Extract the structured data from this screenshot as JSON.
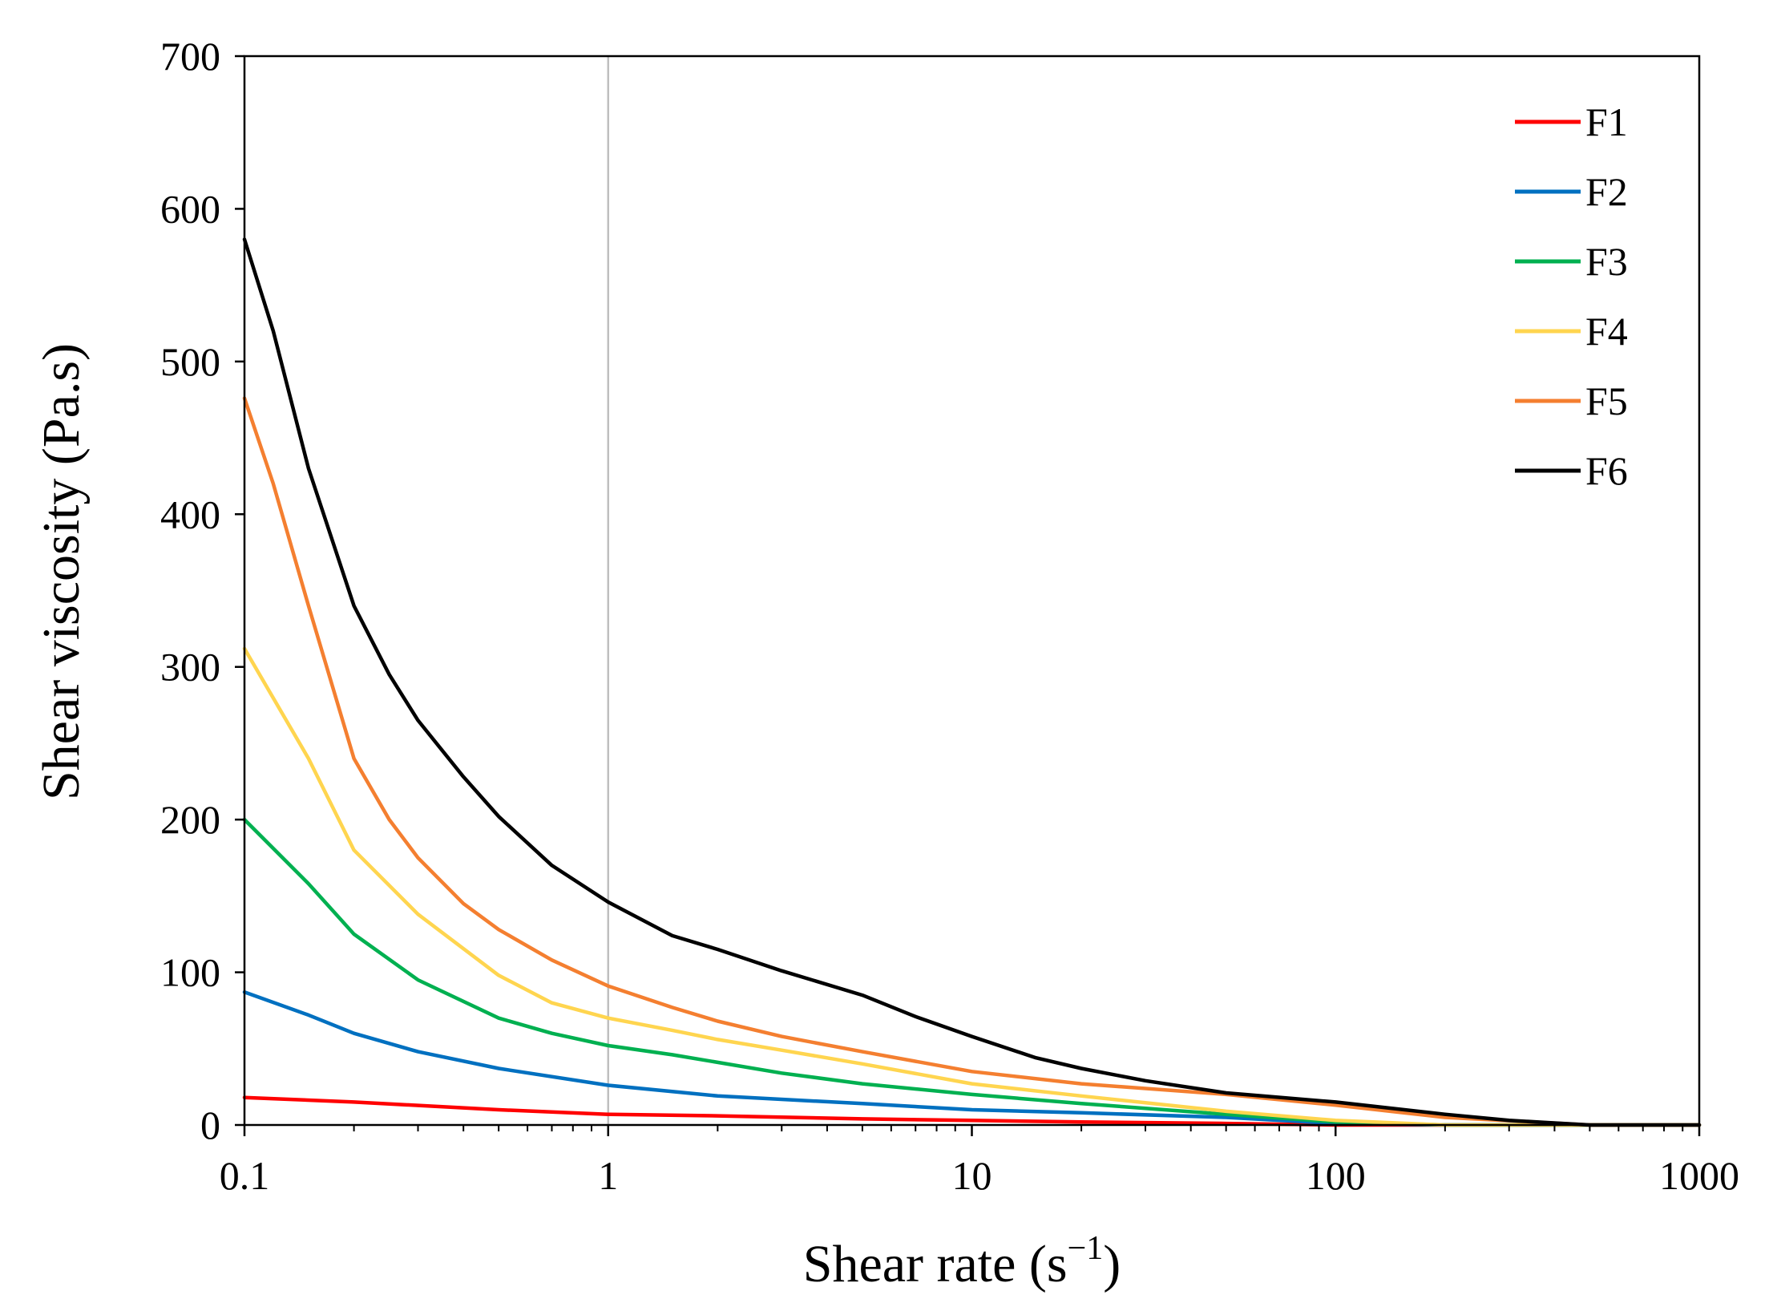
{
  "chart_data": {
    "type": "line",
    "title": "",
    "xlabel": "Shear rate (s",
    "xlabel_sup": "−1",
    "xlabel_close": ")",
    "ylabel": "Shear viscosity (Pa.s)",
    "xscale": "log",
    "xlim": [
      0.1,
      1000
    ],
    "ylim": [
      0,
      700
    ],
    "xticks": [
      0.1,
      1,
      10,
      100,
      1000
    ],
    "xtick_labels": [
      "0.1",
      "1",
      "10",
      "100",
      "1000"
    ],
    "yticks": [
      0,
      100,
      200,
      300,
      400,
      500,
      600,
      700
    ],
    "ytick_labels": [
      "0",
      "100",
      "200",
      "300",
      "400",
      "500",
      "600",
      "700"
    ],
    "reference_line_x": 1,
    "legend_position": "top-right",
    "series": [
      {
        "name": "F1",
        "color": "#ff0000",
        "x": [
          0.1,
          0.2,
          0.5,
          1,
          2,
          5,
          10,
          20,
          50,
          100,
          200,
          500,
          1000
        ],
        "y": [
          18,
          15,
          10,
          7,
          6,
          4,
          3,
          2,
          1,
          0,
          0,
          0,
          0
        ]
      },
      {
        "name": "F2",
        "color": "#0070c0",
        "x": [
          0.1,
          0.15,
          0.2,
          0.3,
          0.5,
          1,
          2,
          5,
          10,
          20,
          50,
          100,
          200,
          500,
          1000
        ],
        "y": [
          87,
          72,
          60,
          48,
          37,
          26,
          19,
          14,
          10,
          8,
          5,
          1,
          0,
          0,
          0
        ]
      },
      {
        "name": "F3",
        "color": "#00b050",
        "x": [
          0.1,
          0.15,
          0.2,
          0.3,
          0.5,
          0.7,
          1,
          1.5,
          2,
          3,
          5,
          10,
          20,
          50,
          100,
          200,
          500,
          1000
        ],
        "y": [
          200,
          158,
          125,
          95,
          70,
          60,
          52,
          46,
          41,
          34,
          27,
          20,
          14,
          7,
          2,
          0,
          0,
          0
        ]
      },
      {
        "name": "F4",
        "color": "#ffd54f",
        "x": [
          0.1,
          0.15,
          0.2,
          0.3,
          0.5,
          0.7,
          1,
          1.5,
          2,
          3,
          5,
          10,
          20,
          50,
          100,
          200,
          500,
          1000
        ],
        "y": [
          312,
          240,
          180,
          138,
          98,
          80,
          70,
          62,
          56,
          49,
          40,
          27,
          19,
          9,
          3,
          0,
          0,
          0
        ]
      },
      {
        "name": "F5",
        "color": "#f47f30",
        "x": [
          0.1,
          0.12,
          0.15,
          0.2,
          0.25,
          0.3,
          0.4,
          0.5,
          0.7,
          1,
          1.5,
          2,
          3,
          5,
          10,
          20,
          50,
          100,
          200,
          500,
          1000
        ],
        "y": [
          476,
          420,
          340,
          240,
          200,
          175,
          145,
          128,
          108,
          91,
          77,
          68,
          58,
          48,
          35,
          27,
          20,
          13,
          5,
          0,
          0
        ]
      },
      {
        "name": "F6",
        "color": "#000000",
        "x": [
          0.1,
          0.12,
          0.15,
          0.2,
          0.25,
          0.3,
          0.4,
          0.5,
          0.7,
          1,
          1.5,
          2,
          3,
          5,
          7,
          10,
          15,
          20,
          30,
          50,
          100,
          200,
          300,
          500,
          700,
          1000
        ],
        "y": [
          580,
          520,
          430,
          340,
          295,
          265,
          228,
          202,
          170,
          146,
          124,
          115,
          101,
          85,
          71,
          58,
          44,
          37,
          29,
          21,
          15,
          7,
          3,
          0,
          0,
          0
        ]
      }
    ]
  }
}
